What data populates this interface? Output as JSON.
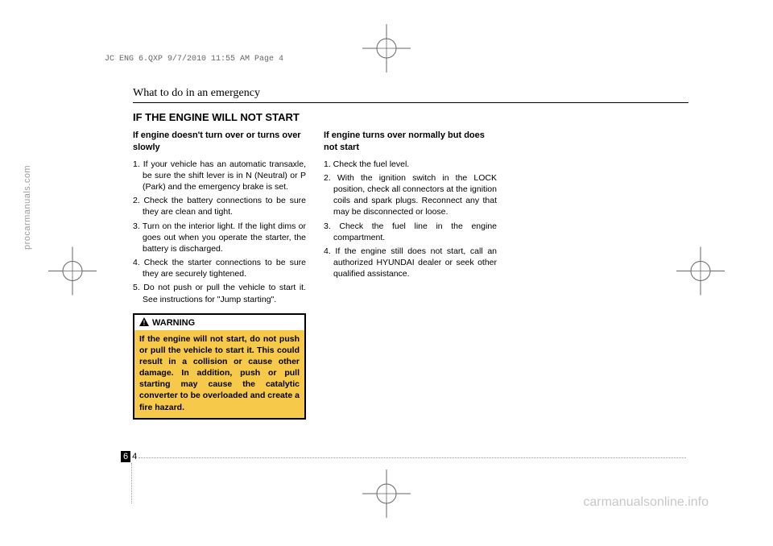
{
  "sidebar_watermark": "procarmanuals.com",
  "print_header": "JC ENG 6.QXP  9/7/2010  11:55 AM  Page 4",
  "section_title": "What to do in an emergency",
  "heading": "IF THE ENGINE WILL NOT START",
  "col1": {
    "subheading": "If engine doesn't turn over or turns over slowly",
    "items": [
      "1. If your vehicle has an automatic transaxle, be sure the shift lever is in N (Neutral) or P (Park) and the emergency brake is set.",
      "2. Check the battery connections to be sure they are clean and tight.",
      "3. Turn on the interior light. If the light dims or goes out when you operate the starter, the battery is discharged.",
      "4. Check the starter connections to be sure they are securely tightened.",
      "5. Do not push or pull the vehicle to start it. See instructions for \"Jump starting\"."
    ],
    "warning_label": "WARNING",
    "warning_body": "If the engine will not start, do not push or pull the vehicle to start it. This could result in a collision or cause other damage. In addition, push or pull starting may cause the catalytic converter to be overloaded and create a fire hazard."
  },
  "col2": {
    "subheading": "If engine turns over normally but does not start",
    "items": [
      "1. Check the fuel level.",
      "2. With the  ignition switch in the LOCK position, check all connectors at the ignition coils and spark plugs. Reconnect any that may be disconnected or loose.",
      "3. Check the fuel line in the engine compartment.",
      "4. If the engine still does not start, call an authorized HYUNDAI dealer or seek other qualified assistance."
    ]
  },
  "page_number_section": "6",
  "page_number_page": "4",
  "footer_watermark": "carmanualsonline.info",
  "reg_mark": {
    "circle_r": 12,
    "line_len": 18,
    "stroke": "#666"
  }
}
